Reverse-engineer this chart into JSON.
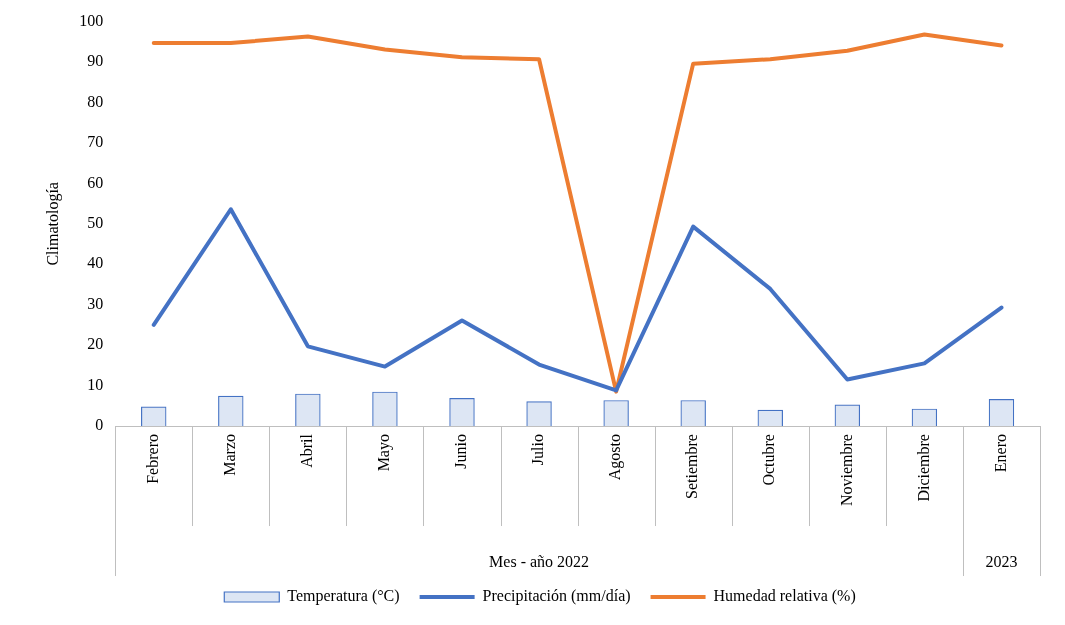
{
  "chart_data": {
    "type": "bar",
    "ylabel": "Climatología",
    "xlabel": "Mes - año 2022",
    "annotations": [
      "2023"
    ],
    "categories": [
      "Febrero",
      "Marzo",
      "Abril",
      "Mayo",
      "Junio",
      "Julio",
      "Agosto",
      "Setiembre",
      "Octubre",
      "Noviembre",
      "Diciembre",
      "Enero"
    ],
    "series": [
      {
        "name": "Temperatura (°C)",
        "color": "#4472c4",
        "values": [
          4.8,
          7.5,
          8,
          8.5,
          6.9,
          6.1,
          6.4,
          6.4,
          4,
          5.3,
          4.3,
          6.7
        ]
      },
      {
        "name": "Precipitación (mm/día)",
        "type": "line",
        "color": "#4472c4",
        "values": [
          25,
          53.6,
          19.7,
          14.7,
          26.1,
          15.2,
          8.8,
          49.3,
          33.9,
          11.5,
          15.5,
          29.3
        ]
      },
      {
        "name": "Humedad relativa (%)",
        "type": "line",
        "color": "#ed7d31",
        "values": [
          94.7,
          94.7,
          96.3,
          93.1,
          91.2,
          90.7,
          8.5,
          89.6,
          90.7,
          92.8,
          96.8,
          94.1
        ]
      }
    ],
    "ylim": [
      0,
      100
    ],
    "yticks": [
      0,
      10,
      20,
      30,
      40,
      50,
      60,
      70,
      80,
      90,
      100
    ],
    "grid": false,
    "legend": "bottom",
    "marker": "none",
    "line_style": "solid"
  }
}
